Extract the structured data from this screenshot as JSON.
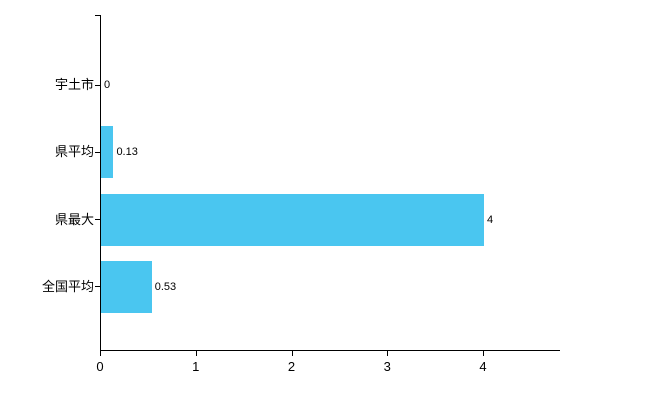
{
  "chart_data": {
    "type": "bar",
    "orientation": "horizontal",
    "title": "",
    "categories": [
      "宇土市",
      "県平均",
      "県最大",
      "全国平均"
    ],
    "values": [
      0,
      0.13,
      4,
      0.53
    ],
    "value_labels": [
      "0",
      "0.13",
      "4",
      "0.53"
    ],
    "x_ticks": [
      0,
      1,
      2,
      3,
      4
    ],
    "x_tick_labels": [
      "0",
      "1",
      "2",
      "3",
      "4"
    ],
    "xlim": [
      0,
      4.8
    ],
    "ylabel": "",
    "xlabel": "",
    "legend": "none",
    "grid": "off",
    "bar_color": "#4ac6f0",
    "axis_color": "#000000",
    "label_color": "#000000",
    "background_color": "#ffffff"
  }
}
